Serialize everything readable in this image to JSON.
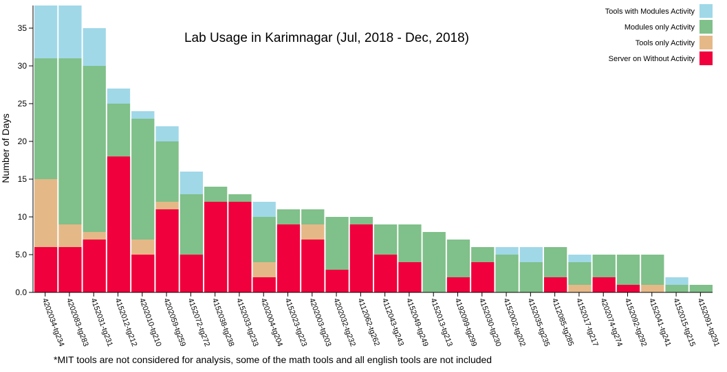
{
  "chart_data": {
    "type": "bar",
    "stacked": true,
    "title": "Lab Usage in Karimnagar (Jul, 2018 - Dec, 2018)",
    "ylabel": "Number of Days",
    "xlabel": "",
    "ylim": [
      0,
      38
    ],
    "yticks": [
      0,
      5,
      10,
      15,
      20,
      25,
      30,
      35
    ],
    "ytick_labels": [
      "0.0",
      "5.0",
      "10",
      "15",
      "20",
      "25",
      "30",
      "35"
    ],
    "grid": false,
    "legend_position": "top-right",
    "categories": [
      "4202034-tg234",
      "4202083-tg283",
      "4152031-tg231",
      "4152012-tg212",
      "4202010-tg210",
      "4202059-tg259",
      "4152072-tg272",
      "4152038-tg238",
      "4152033-tg233",
      "4202004-tg204",
      "4152023-tg223",
      "4202003-tg203",
      "4202032-tg232",
      "4112062-tg262",
      "4112043-tg243",
      "4152049-tg249",
      "4152013-tg213",
      "4192099-tg299",
      "4152030-tg230",
      "4152002-tg202",
      "4152035-tg235",
      "4112085-tg285",
      "4152017-tg217",
      "4202074-tg274",
      "4152092-tg292",
      "4152041-tg241",
      "4152015-tg215",
      "4152091-tg291"
    ],
    "series": [
      {
        "name": "Server on Without Activity",
        "color": "#f0003c",
        "values": [
          6,
          6,
          7,
          18,
          5,
          11,
          5,
          12,
          12,
          2,
          9,
          7,
          3,
          9,
          5,
          4,
          0,
          2,
          4,
          0,
          0,
          2,
          0,
          2,
          1,
          0,
          0,
          0
        ]
      },
      {
        "name": "Tools only Activity",
        "color": "#e5b887",
        "values": [
          9,
          3,
          1,
          0,
          2,
          1,
          0,
          0,
          0,
          2,
          0,
          2,
          0,
          0,
          0,
          0,
          0,
          0,
          0,
          0,
          0,
          0,
          1,
          0,
          0,
          1,
          0,
          0
        ]
      },
      {
        "name": "Modules only Activity",
        "color": "#80c08a",
        "values": [
          16,
          22,
          22,
          7,
          16,
          8,
          8,
          2,
          1,
          6,
          2,
          2,
          7,
          1,
          4,
          5,
          8,
          5,
          2,
          5,
          4,
          4,
          3,
          3,
          4,
          4,
          1,
          1
        ]
      },
      {
        "name": "Tools with Modules Activity",
        "color": "#a0d8e8",
        "values": [
          7,
          7,
          5,
          2,
          1,
          2,
          3,
          0,
          0,
          2,
          0,
          0,
          0,
          0,
          0,
          0,
          0,
          0,
          0,
          1,
          2,
          0,
          1,
          0,
          0,
          0,
          1,
          0
        ]
      }
    ],
    "legend_order": [
      "Tools with Modules Activity",
      "Modules only Activity",
      "Tools only Activity",
      "Server on Without Activity"
    ]
  },
  "footnote": "*MIT tools are not considered for analysis, some of the math tools and all english tools are not included"
}
